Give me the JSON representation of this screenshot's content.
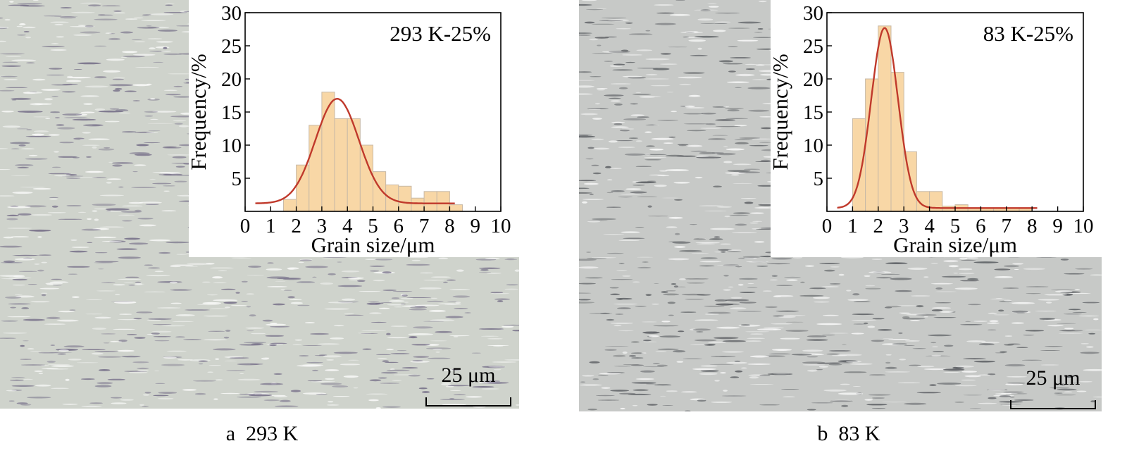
{
  "panels": [
    {
      "caption": "a  293 K",
      "scale_bar": "25 μm",
      "micrograph_tone": "#cfd3cc",
      "micrograph_ink": "#6b6380"
    },
    {
      "caption": "b  83 K",
      "scale_bar": "25 μm",
      "micrograph_tone": "#c7c9c7",
      "micrograph_ink": "#4f5257"
    }
  ],
  "chart_data": [
    {
      "type": "bar",
      "annotation": "293 K-25%",
      "xlabel": "Grain size/μm",
      "ylabel": "Frequency/%",
      "xlim": [
        0,
        10
      ],
      "ylim": [
        0,
        30
      ],
      "x_ticks": [
        "0",
        "1",
        "2",
        "3",
        "4",
        "5",
        "6",
        "7",
        "8",
        "9",
        "10"
      ],
      "y_ticks": [
        "5",
        "10",
        "15",
        "20",
        "25",
        "30"
      ],
      "bin_width": 0.5,
      "bars": [
        {
          "x": 1.5,
          "value": 1.8
        },
        {
          "x": 2.0,
          "value": 7
        },
        {
          "x": 2.5,
          "value": 13
        },
        {
          "x": 3.0,
          "value": 18
        },
        {
          "x": 3.5,
          "value": 14
        },
        {
          "x": 4.0,
          "value": 14
        },
        {
          "x": 4.5,
          "value": 10
        },
        {
          "x": 5.0,
          "value": 6
        },
        {
          "x": 5.5,
          "value": 4
        },
        {
          "x": 6.0,
          "value": 3.8
        },
        {
          "x": 6.5,
          "value": 2
        },
        {
          "x": 7.0,
          "value": 3
        },
        {
          "x": 7.5,
          "value": 3
        },
        {
          "x": 8.0,
          "value": 1
        }
      ],
      "fit": {
        "kind": "gaussian",
        "center": 3.6,
        "width": 0.85,
        "amplitude": 15.8,
        "baseline": 1.2
      },
      "bar_color": "#f8d7a6",
      "bar_edge": "#c8b9a6",
      "fit_color": "#c0392b"
    },
    {
      "type": "bar",
      "annotation": "83 K-25%",
      "xlabel": "Grain size/μm",
      "ylabel": "Frequency/%",
      "xlim": [
        0,
        10
      ],
      "ylim": [
        0,
        30
      ],
      "x_ticks": [
        "0",
        "1",
        "2",
        "3",
        "4",
        "5",
        "6",
        "7",
        "8",
        "9",
        "10"
      ],
      "y_ticks": [
        "5",
        "10",
        "15",
        "20",
        "25",
        "30"
      ],
      "bin_width": 0.5,
      "bars": [
        {
          "x": 1.0,
          "value": 14
        },
        {
          "x": 1.5,
          "value": 20
        },
        {
          "x": 2.0,
          "value": 28
        },
        {
          "x": 2.5,
          "value": 21
        },
        {
          "x": 3.0,
          "value": 9
        },
        {
          "x": 3.5,
          "value": 3
        },
        {
          "x": 4.0,
          "value": 3
        },
        {
          "x": 4.5,
          "value": 0.8
        },
        {
          "x": 5.0,
          "value": 1
        },
        {
          "x": 5.5,
          "value": 0.5
        },
        {
          "x": 6.0,
          "value": 0.5
        },
        {
          "x": 6.5,
          "value": 0.5
        },
        {
          "x": 7.0,
          "value": 0.5
        },
        {
          "x": 7.5,
          "value": 0.5
        }
      ],
      "fit": {
        "kind": "gaussian",
        "center": 2.25,
        "width": 0.52,
        "amplitude": 27.2,
        "baseline": 0.5
      },
      "bar_color": "#f8d7a6",
      "bar_edge": "#c8b9a6",
      "fit_color": "#c0392b"
    }
  ]
}
